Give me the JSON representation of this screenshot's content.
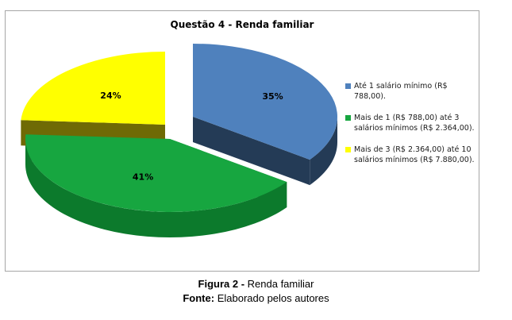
{
  "chart_data": {
    "type": "pie",
    "title": "Questão 4 - Renda familiar",
    "legend_position": "right",
    "slices": [
      {
        "label": "Até 1 salário mínimo (R$ 788,00).",
        "value": 35,
        "value_label": "35%",
        "color": "#4f81bd",
        "side_color": "#243b56"
      },
      {
        "label": "Mais de 1 (R$ 788,00) até 3 salários mínimos (R$ 2.364,00).",
        "value": 41,
        "value_label": "41%",
        "color": "#17a640",
        "side_color": "#0c7a2c"
      },
      {
        "label": "Mais de 3 (R$ 2.364,00) até 10 salários mínimos (R$ 7.880,00).",
        "value": 24,
        "value_label": "24%",
        "color": "#ffff00",
        "side_color": "#6f6a05"
      }
    ]
  },
  "caption": {
    "figure_label": "Figura 2 -",
    "figure_text": " Renda familiar",
    "source_label": "Fonte:",
    "source_text": " Elaborado pelos autores"
  }
}
